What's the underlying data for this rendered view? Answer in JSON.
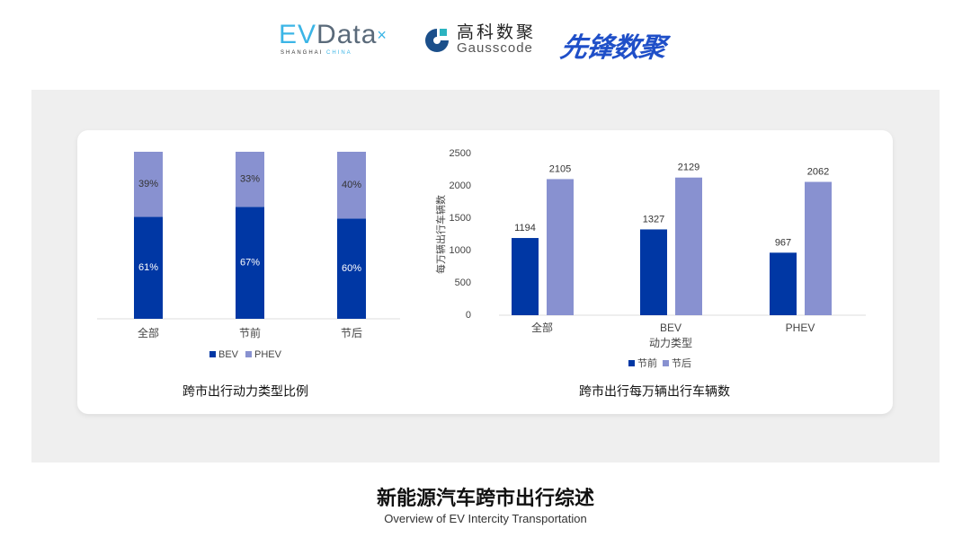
{
  "logos": {
    "evdata": {
      "main": "EVData",
      "sub_a": "SHANGHAI",
      "sub_b": "CHINA"
    },
    "gausscode": {
      "cn": "高科数聚",
      "en": "Gausscode"
    },
    "xianfeng": {
      "text": "先锋数聚"
    }
  },
  "colors": {
    "bev": "#0037a4",
    "phev": "#8891d0",
    "before": "#0037a4",
    "after": "#8891d0",
    "panel": "#efefef"
  },
  "chart_data": [
    {
      "type": "bar",
      "stacked": "percent",
      "title": "跨市出行动力类型比例",
      "categories": [
        "全部",
        "节前",
        "节后"
      ],
      "series": [
        {
          "name": "BEV",
          "values": [
            61,
            67,
            60
          ],
          "labels": [
            "61%",
            "67%",
            "60%"
          ]
        },
        {
          "name": "PHEV",
          "values": [
            39,
            33,
            40
          ],
          "labels": [
            "39%",
            "33%",
            "40%"
          ]
        }
      ],
      "legend": "bottom",
      "ylim": [
        0,
        100
      ],
      "grid": false
    },
    {
      "type": "bar",
      "title": "跨市出行每万辆出行车辆数",
      "xlabel": "动力类型",
      "ylabel": "每万辆出行车辆数",
      "categories": [
        "全部",
        "BEV",
        "PHEV"
      ],
      "series": [
        {
          "name": "节前",
          "values": [
            1194,
            1327,
            967
          ]
        },
        {
          "name": "节后",
          "values": [
            2105,
            2129,
            2062
          ]
        }
      ],
      "yticks": [
        "0",
        "500",
        "1000",
        "1500",
        "2000",
        "2500"
      ],
      "ylim": [
        0,
        2500
      ],
      "legend": "bottom",
      "grid": false
    }
  ],
  "footer": {
    "title": "新能源汽车跨市出行综述",
    "subtitle": "Overview of EV Intercity Transportation"
  }
}
